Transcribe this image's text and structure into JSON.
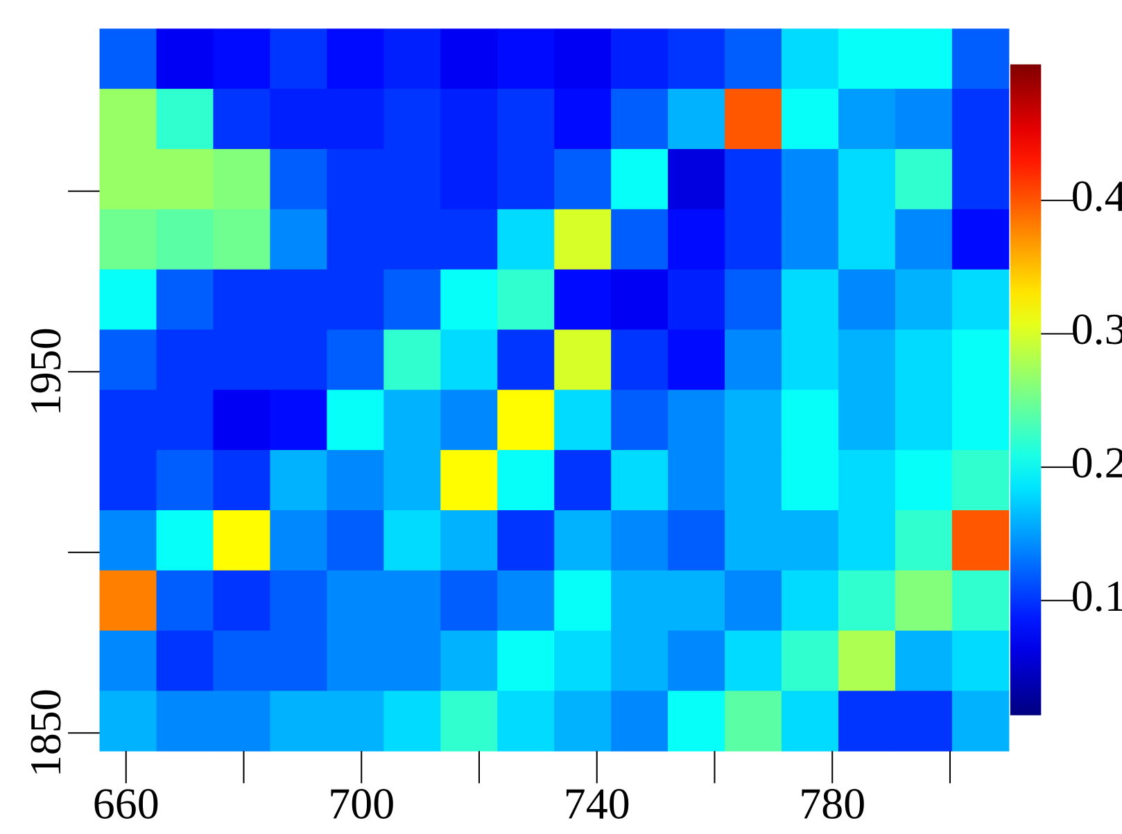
{
  "chart_data": {
    "type": "heatmap",
    "colormap": "jet",
    "xlim": [
      655.5,
      810
    ],
    "ylim": [
      1845,
      2045
    ],
    "xticks": [
      660,
      700,
      740,
      780
    ],
    "xticks_minor": [
      680,
      720,
      760,
      800
    ],
    "yticks": [
      1850,
      1950
    ],
    "yticks_minor": [
      1900,
      2000
    ],
    "clim": [
      0.014,
      0.502
    ],
    "cticks": [
      0.1,
      0.2,
      0.3,
      0.4
    ],
    "z": [
      [
        0.12,
        0.07,
        0.08,
        0.1,
        0.08,
        0.09,
        0.07,
        0.08,
        0.07,
        0.09,
        0.1,
        0.12,
        0.18,
        0.2,
        0.2,
        0.12
      ],
      [
        0.27,
        0.22,
        0.1,
        0.09,
        0.09,
        0.1,
        0.09,
        0.1,
        0.08,
        0.12,
        0.16,
        0.4,
        0.2,
        0.15,
        0.14,
        0.1
      ],
      [
        0.27,
        0.27,
        0.26,
        0.12,
        0.1,
        0.1,
        0.09,
        0.1,
        0.12,
        0.2,
        0.06,
        0.1,
        0.14,
        0.18,
        0.22,
        0.1
      ],
      [
        0.25,
        0.24,
        0.25,
        0.14,
        0.1,
        0.1,
        0.1,
        0.18,
        0.3,
        0.12,
        0.08,
        0.1,
        0.14,
        0.18,
        0.14,
        0.08
      ],
      [
        0.2,
        0.12,
        0.1,
        0.1,
        0.1,
        0.12,
        0.2,
        0.22,
        0.08,
        0.07,
        0.09,
        0.12,
        0.18,
        0.14,
        0.16,
        0.18
      ],
      [
        0.12,
        0.1,
        0.1,
        0.1,
        0.12,
        0.22,
        0.18,
        0.1,
        0.3,
        0.1,
        0.08,
        0.14,
        0.18,
        0.16,
        0.18,
        0.2
      ],
      [
        0.1,
        0.1,
        0.07,
        0.08,
        0.2,
        0.16,
        0.14,
        0.32,
        0.18,
        0.12,
        0.14,
        0.16,
        0.2,
        0.16,
        0.18,
        0.2
      ],
      [
        0.1,
        0.12,
        0.1,
        0.16,
        0.14,
        0.16,
        0.32,
        0.2,
        0.1,
        0.18,
        0.14,
        0.16,
        0.2,
        0.18,
        0.2,
        0.22
      ],
      [
        0.14,
        0.2,
        0.32,
        0.14,
        0.12,
        0.18,
        0.16,
        0.1,
        0.16,
        0.14,
        0.12,
        0.16,
        0.16,
        0.18,
        0.22,
        0.4
      ],
      [
        0.38,
        0.12,
        0.1,
        0.12,
        0.14,
        0.14,
        0.12,
        0.14,
        0.2,
        0.16,
        0.16,
        0.14,
        0.18,
        0.22,
        0.26,
        0.22
      ],
      [
        0.14,
        0.1,
        0.12,
        0.12,
        0.14,
        0.14,
        0.16,
        0.2,
        0.18,
        0.16,
        0.14,
        0.18,
        0.22,
        0.28,
        0.16,
        0.18
      ],
      [
        0.16,
        0.14,
        0.14,
        0.16,
        0.16,
        0.18,
        0.22,
        0.18,
        0.16,
        0.14,
        0.2,
        0.24,
        0.18,
        0.1,
        0.1,
        0.16
      ]
    ]
  }
}
